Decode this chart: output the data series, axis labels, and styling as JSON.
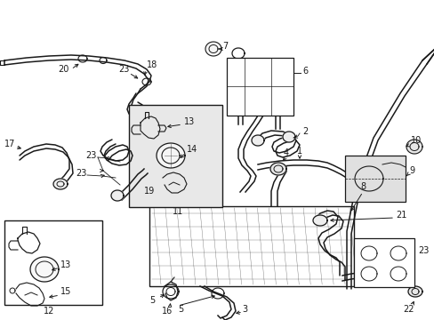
{
  "bg_color": "#ffffff",
  "line_color": "#1a1a1a",
  "box_fill": "#e8e8e8",
  "figsize": [
    4.89,
    3.6
  ],
  "dpi": 100,
  "lw": 1.1,
  "lw_thin": 0.7,
  "fs": 7.0
}
